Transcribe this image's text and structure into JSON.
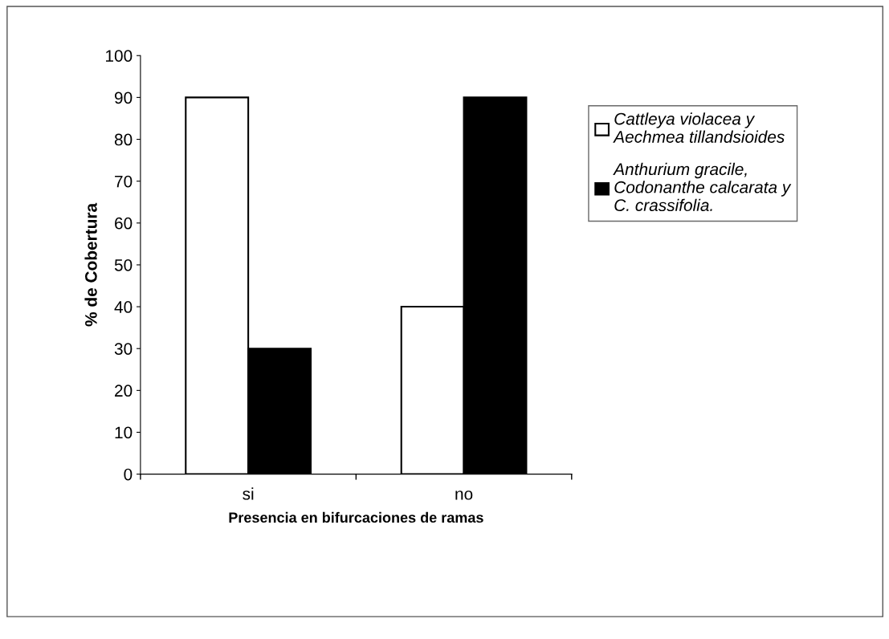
{
  "chart_data": {
    "type": "bar",
    "xlabel": "Presencia en bifurcaciones de ramas",
    "ylabel": "% de Cobertura",
    "categories": [
      "si",
      "no"
    ],
    "series": [
      {
        "name": "Cattleya violacea y\nAechmea tillandsioides",
        "color": "#ffffff",
        "values": [
          90,
          40
        ]
      },
      {
        "name": "Anthurium gracile,\nCodonanthe calcarata y\nC. crassifolia.",
        "color": "#000000",
        "values": [
          30,
          90
        ]
      }
    ],
    "ylim": [
      0,
      100
    ],
    "yticks": [
      0,
      10,
      20,
      30,
      40,
      50,
      60,
      70,
      80,
      90,
      100
    ],
    "grid": false,
    "legend": "right"
  }
}
